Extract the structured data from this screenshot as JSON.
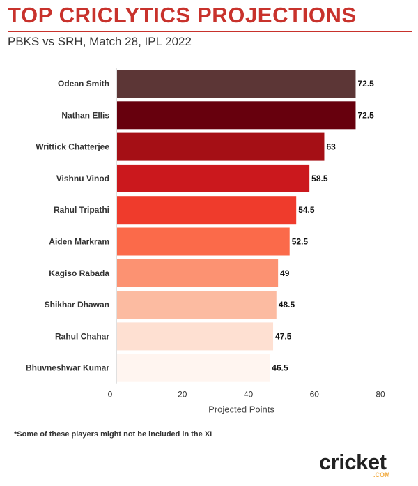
{
  "header": {
    "title": "TOP CRICLYTICS PROJECTIONS",
    "subtitle": "PBKS vs SRH, Match 28, IPL 2022"
  },
  "footnote": "*Some of these players might not be included in the XI",
  "logo": {
    "word": "cricket",
    "suffix": ".COM"
  },
  "colors": {
    "title": "#c8322c",
    "bars": [
      "#5c3636",
      "#67000d",
      "#a50f15",
      "#cb181d",
      "#ef3b2c",
      "#fb6a4a",
      "#fc9272",
      "#fcbba1",
      "#fee0d2",
      "#fff5f0"
    ]
  },
  "chart_data": {
    "type": "bar",
    "orientation": "horizontal",
    "categories": [
      "Odean Smith",
      "Nathan Ellis",
      "Writtick Chatterjee",
      "Vishnu Vinod",
      "Rahul Tripathi",
      "Aiden Markram",
      "Kagiso Rabada",
      "Shikhar Dhawan",
      "Rahul Chahar",
      "Bhuvneshwar Kumar"
    ],
    "values": [
      72.5,
      72.5,
      63,
      58.5,
      54.5,
      52.5,
      49,
      48.5,
      47.5,
      46.5
    ],
    "data_labels": [
      "72.5",
      "72.5",
      "63",
      "58.5",
      "54.5",
      "52.5",
      "49",
      "48.5",
      "47.5",
      "46.5"
    ],
    "xlabel": "Projected Points",
    "ylabel": "",
    "xlim": [
      0,
      80
    ],
    "xticks": [
      "0",
      "20",
      "40",
      "60",
      "80"
    ],
    "grid": false,
    "legend": "none"
  }
}
